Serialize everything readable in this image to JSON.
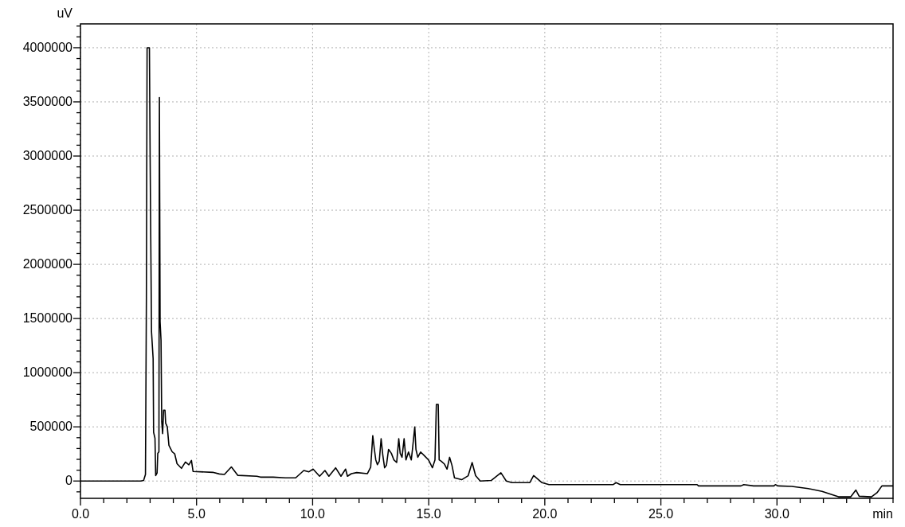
{
  "chart_data": {
    "type": "line",
    "xlabel": "min",
    "ylabel": "uV",
    "xlim": [
      0,
      35
    ],
    "ylim": [
      -160000,
      4220000
    ],
    "xticks": [
      {
        "value": 0,
        "label": "0.0"
      },
      {
        "value": 1,
        "label": null
      },
      {
        "value": 2,
        "label": null
      },
      {
        "value": 3,
        "label": null
      },
      {
        "value": 4,
        "label": null
      },
      {
        "value": 5,
        "label": "5.0"
      },
      {
        "value": 6,
        "label": null
      },
      {
        "value": 7,
        "label": null
      },
      {
        "value": 8,
        "label": null
      },
      {
        "value": 9,
        "label": null
      },
      {
        "value": 10,
        "label": "10.0"
      },
      {
        "value": 11,
        "label": null
      },
      {
        "value": 12,
        "label": null
      },
      {
        "value": 13,
        "label": null
      },
      {
        "value": 14,
        "label": null
      },
      {
        "value": 15,
        "label": "15.0"
      },
      {
        "value": 16,
        "label": null
      },
      {
        "value": 17,
        "label": null
      },
      {
        "value": 18,
        "label": null
      },
      {
        "value": 19,
        "label": null
      },
      {
        "value": 20,
        "label": "20.0"
      },
      {
        "value": 21,
        "label": null
      },
      {
        "value": 22,
        "label": null
      },
      {
        "value": 23,
        "label": null
      },
      {
        "value": 24,
        "label": null
      },
      {
        "value": 25,
        "label": "25.0"
      },
      {
        "value": 26,
        "label": null
      },
      {
        "value": 27,
        "label": null
      },
      {
        "value": 28,
        "label": null
      },
      {
        "value": 29,
        "label": null
      },
      {
        "value": 30,
        "label": "30.0"
      },
      {
        "value": 31,
        "label": null
      },
      {
        "value": 32,
        "label": null
      },
      {
        "value": 33,
        "label": null
      },
      {
        "value": 34,
        "label": null
      },
      {
        "value": 35,
        "label": null
      }
    ],
    "yticks": [
      {
        "value": -100000,
        "label": null
      },
      0,
      {
        "value": 100000,
        "label": null
      },
      {
        "value": 200000,
        "label": null
      },
      {
        "value": 300000,
        "label": null
      },
      {
        "value": 400000,
        "label": null
      },
      500000,
      {
        "value": 600000,
        "label": null
      },
      {
        "value": 700000,
        "label": null
      },
      {
        "value": 800000,
        "label": null
      },
      {
        "value": 900000,
        "label": null
      },
      1000000,
      {
        "value": 1100000,
        "label": null
      },
      {
        "value": 1200000,
        "label": null
      },
      {
        "value": 1300000,
        "label": null
      },
      {
        "value": 1400000,
        "label": null
      },
      1500000,
      {
        "value": 1600000,
        "label": null
      },
      {
        "value": 1700000,
        "label": null
      },
      {
        "value": 1800000,
        "label": null
      },
      {
        "value": 1900000,
        "label": null
      },
      2000000,
      {
        "value": 2100000,
        "label": null
      },
      {
        "value": 2200000,
        "label": null
      },
      {
        "value": 2300000,
        "label": null
      },
      {
        "value": 2400000,
        "label": null
      },
      2500000,
      {
        "value": 2600000,
        "label": null
      },
      {
        "value": 2700000,
        "label": null
      },
      {
        "value": 2800000,
        "label": null
      },
      {
        "value": 2900000,
        "label": null
      },
      3000000,
      {
        "value": 3100000,
        "label": null
      },
      {
        "value": 3200000,
        "label": null
      },
      {
        "value": 3300000,
        "label": null
      },
      {
        "value": 3400000,
        "label": null
      },
      3500000,
      {
        "value": 3600000,
        "label": null
      },
      {
        "value": 3700000,
        "label": null
      },
      {
        "value": 3800000,
        "label": null
      },
      {
        "value": 3900000,
        "label": null
      },
      4000000,
      {
        "value": 4100000,
        "label": null
      },
      {
        "value": 4200000,
        "label": null
      }
    ],
    "grid": true,
    "line_style": "solid",
    "series": [
      {
        "color": "#000000",
        "x": [
          0,
          2.6,
          2.72,
          2.8,
          2.84,
          2.87,
          2.97,
          3.0,
          3.06,
          3.13,
          3.15,
          3.21,
          3.24,
          3.3,
          3.33,
          3.38,
          3.4,
          3.43,
          3.47,
          3.5,
          3.54,
          3.58,
          3.64,
          3.67,
          3.74,
          3.81,
          3.95,
          4.06,
          4.16,
          4.35,
          4.52,
          4.67,
          4.78,
          4.85,
          5.7,
          5.98,
          6.2,
          6.5,
          6.78,
          7.6,
          7.75,
          8.3,
          8.83,
          9.27,
          9.62,
          9.84,
          10.02,
          10.3,
          10.53,
          10.7,
          10.99,
          11.22,
          11.42,
          11.5,
          11.67,
          11.9,
          12.36,
          12.5,
          12.59,
          12.66,
          12.72,
          12.79,
          12.87,
          12.95,
          13.02,
          13.1,
          13.18,
          13.27,
          13.39,
          13.5,
          13.62,
          13.71,
          13.77,
          13.85,
          13.94,
          14.02,
          14.13,
          14.25,
          14.3,
          14.4,
          14.45,
          14.53,
          14.65,
          14.82,
          14.99,
          15.16,
          15.27,
          15.33,
          15.41,
          15.45,
          15.54,
          15.67,
          15.79,
          15.9,
          16.0,
          16.11,
          16.42,
          16.7,
          16.87,
          17.02,
          17.22,
          17.69,
          18.11,
          18.34,
          18.58,
          19.05,
          19.35,
          19.52,
          19.88,
          20.18,
          22.95,
          23.07,
          23.25,
          26.56,
          26.62,
          28.45,
          28.57,
          28.99,
          29.87,
          29.93,
          30.05,
          30.64,
          31.35,
          31.94,
          32.65,
          33.18,
          33.4,
          33.54,
          34.07,
          34.31,
          34.52,
          35.0
        ],
        "values": [
          0,
          0,
          5000,
          60000,
          1700000,
          4000000,
          4000000,
          3000000,
          1380000,
          1130000,
          450000,
          395000,
          50000,
          75000,
          256000,
          270000,
          3540000,
          1470000,
          1300000,
          548000,
          438000,
          654000,
          654000,
          533000,
          500000,
          330000,
          270000,
          250000,
          160000,
          117000,
          175000,
          150000,
          190000,
          88000,
          80000,
          65000,
          60000,
          130000,
          52000,
          44000,
          36000,
          36000,
          29000,
          29000,
          97000,
          85000,
          110000,
          44000,
          97000,
          44000,
          122000,
          44000,
          110000,
          44000,
          68000,
          78000,
          68000,
          127000,
          419000,
          292000,
          195000,
          151000,
          183000,
          390000,
          244000,
          122000,
          146000,
          292000,
          256000,
          195000,
          171000,
          390000,
          256000,
          219000,
          390000,
          195000,
          268000,
          195000,
          292000,
          500000,
          292000,
          219000,
          268000,
          232000,
          195000,
          122000,
          195000,
          707000,
          707000,
          195000,
          183000,
          158000,
          110000,
          219000,
          146000,
          29000,
          12000,
          49000,
          171000,
          49000,
          0,
          5000,
          76000,
          0,
          -15000,
          -15000,
          -15000,
          50000,
          -15000,
          -33000,
          -33000,
          -15000,
          -33000,
          -33000,
          -45000,
          -45000,
          -33000,
          -45000,
          -45000,
          -33000,
          -45000,
          -50000,
          -70000,
          -96000,
          -146000,
          -146000,
          -83000,
          -141000,
          -146000,
          -108000,
          -45000,
          -45000
        ]
      }
    ]
  }
}
